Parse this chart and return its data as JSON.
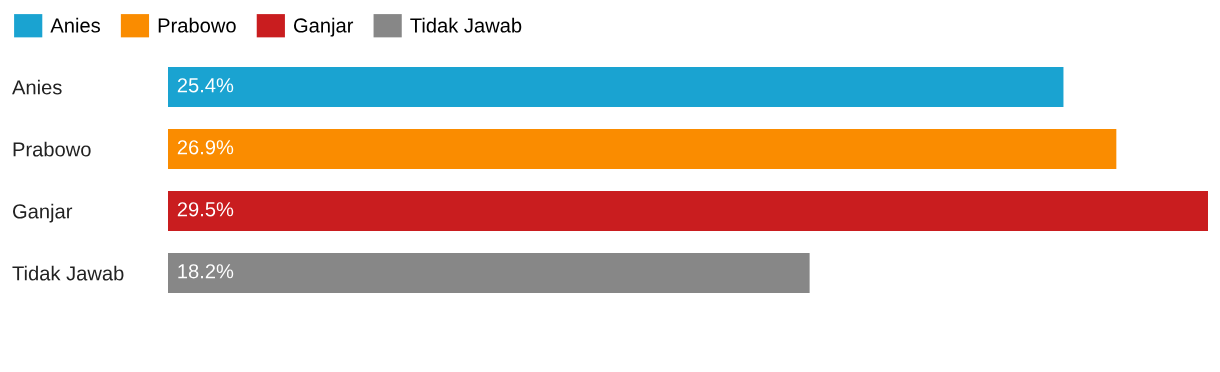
{
  "chart_data": {
    "type": "bar",
    "orientation": "horizontal",
    "categories": [
      "Anies",
      "Prabowo",
      "Ganjar",
      "Tidak Jawab"
    ],
    "series": [
      {
        "name": "Anies",
        "color": "#1aa3d1",
        "values": [
          25.4,
          null,
          null,
          null
        ],
        "value_labels": [
          "25.4%",
          null,
          null,
          null
        ]
      },
      {
        "name": "Prabowo",
        "color": "#fa8c00",
        "values": [
          null,
          26.9,
          null,
          null
        ],
        "value_labels": [
          null,
          "26.9%",
          null,
          null
        ]
      },
      {
        "name": "Ganjar",
        "color": "#c91d1f",
        "values": [
          null,
          null,
          29.5,
          null
        ],
        "value_labels": [
          null,
          null,
          "29.5%",
          null
        ]
      },
      {
        "name": "Tidak Jawab",
        "color": "#878787",
        "values": [
          null,
          null,
          null,
          18.2
        ],
        "value_labels": [
          null,
          null,
          null,
          "18.2%"
        ]
      }
    ],
    "legend": "top left"
  }
}
